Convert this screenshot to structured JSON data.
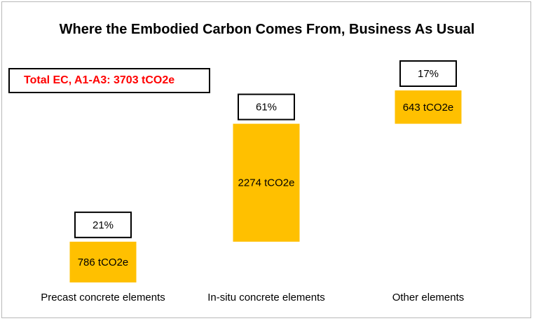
{
  "chart_data": {
    "type": "bar",
    "subtype": "waterfall",
    "title": "Where the Embodied Carbon Comes From, Business As Usual",
    "total_label": "Total EC, A1-A3: 3703 tCO2e",
    "categories": [
      "Precast concrete elements",
      "In-situ concrete elements",
      "Other elements"
    ],
    "values": [
      786,
      2274,
      643
    ],
    "value_labels": [
      "786 tCO2e",
      "2274 tCO2e",
      "643 tCO2e"
    ],
    "percent_labels": [
      "21%",
      "61%",
      "17%"
    ],
    "total": 3703,
    "bar_color": "#ffc000",
    "legend": "none",
    "grid": false
  }
}
